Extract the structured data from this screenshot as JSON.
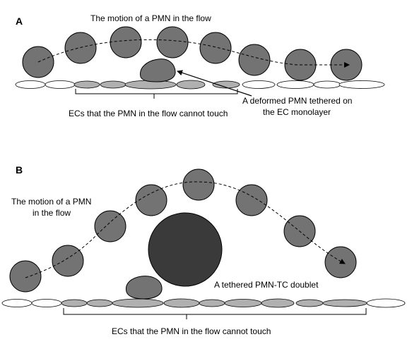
{
  "panel_a": {
    "label": "A",
    "flow_text": "The motion of a PMN in the flow",
    "callout_line1": "A deformed PMN tethered on",
    "callout_line2": "the EC monolayer",
    "brace_text": "ECs that the PMN in the flow cannot touch"
  },
  "panel_b": {
    "label": "B",
    "flow_text_line1": "The motion of a PMN",
    "flow_text_line2": "in the flow",
    "doublet_text": "A tethered PMN-TC doublet",
    "brace_text": "ECs that the PMN in the flow cannot touch"
  },
  "colors": {
    "pmn_fill": "#737373",
    "cell_grey": "#b0b0b0",
    "cell_white": "#ffffff",
    "tc_fill": "#3a3a3a",
    "stroke": "#000000"
  },
  "icons": [
    "flow-path-arrow",
    "callout-arrow",
    "brace"
  ]
}
